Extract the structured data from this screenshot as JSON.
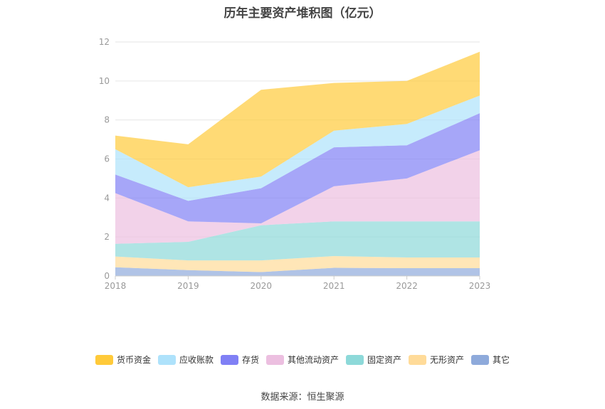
{
  "chart_data": {
    "type": "area",
    "stacked": true,
    "title": "历年主要资产堆积图（亿元）",
    "x": [
      "2018",
      "2019",
      "2020",
      "2021",
      "2022",
      "2023"
    ],
    "ylim": [
      0,
      12
    ],
    "yticks": [
      0,
      2,
      4,
      6,
      8,
      10,
      12
    ],
    "grid": true,
    "legend_position": "bottom",
    "series": [
      {
        "name": "其它",
        "color": "#8eaadb",
        "values": [
          0.45,
          0.3,
          0.2,
          0.42,
          0.4,
          0.4
        ]
      },
      {
        "name": "无形资产",
        "color": "#ffdb99",
        "values": [
          0.55,
          0.5,
          0.6,
          0.6,
          0.55,
          0.55
        ]
      },
      {
        "name": "固定资产",
        "color": "#8dd9d9",
        "values": [
          0.65,
          0.95,
          1.8,
          1.78,
          1.85,
          1.85
        ]
      },
      {
        "name": "其他流动资产",
        "color": "#ecbfe0",
        "values": [
          2.6,
          1.05,
          0.1,
          1.8,
          2.2,
          3.65
        ]
      },
      {
        "name": "存货",
        "color": "#8080f5",
        "values": [
          0.95,
          1.05,
          1.8,
          2.0,
          1.7,
          1.9
        ]
      },
      {
        "name": "应收账款",
        "color": "#aee2fb",
        "values": [
          1.3,
          0.7,
          0.6,
          0.85,
          1.1,
          0.9
        ]
      },
      {
        "name": "货币资金",
        "color": "#ffca3a",
        "values": [
          0.7,
          2.2,
          4.45,
          2.45,
          2.2,
          2.25
        ]
      }
    ]
  },
  "legend": [
    "货币资金",
    "应收账款",
    "存货",
    "其他流动资产",
    "固定资产",
    "无形资产",
    "其它"
  ],
  "legend_colors": [
    "#ffca3a",
    "#aee2fb",
    "#8080f5",
    "#ecbfe0",
    "#8dd9d9",
    "#ffdb99",
    "#8eaadb"
  ],
  "source": "数据来源：恒生聚源"
}
